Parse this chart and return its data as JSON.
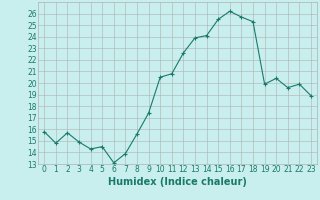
{
  "xlabel": "Humidex (Indice chaleur)",
  "x_values": [
    0,
    1,
    2,
    3,
    4,
    5,
    6,
    7,
    8,
    9,
    10,
    11,
    12,
    13,
    14,
    15,
    16,
    17,
    18,
    19,
    20,
    21,
    22,
    23
  ],
  "y_values": [
    15.8,
    14.8,
    15.7,
    14.9,
    14.3,
    14.5,
    13.1,
    13.9,
    15.6,
    17.4,
    20.5,
    20.8,
    22.6,
    23.9,
    24.1,
    25.5,
    26.2,
    25.7,
    25.3,
    19.9,
    20.4,
    19.6,
    19.9,
    18.9
  ],
  "line_color": "#1a7a6a",
  "marker": "+",
  "marker_size": 3,
  "bg_color": "#c8eeee",
  "grid_color": "#b0b0b0",
  "ylim": [
    13,
    27
  ],
  "yticks": [
    13,
    14,
    15,
    16,
    17,
    18,
    19,
    20,
    21,
    22,
    23,
    24,
    25,
    26
  ],
  "xticks": [
    0,
    1,
    2,
    3,
    4,
    5,
    6,
    7,
    8,
    9,
    10,
    11,
    12,
    13,
    14,
    15,
    16,
    17,
    18,
    19,
    20,
    21,
    22,
    23
  ],
  "tick_label_fontsize": 5.5,
  "xlabel_fontsize": 7,
  "axis_label_color": "#1a7a6a",
  "linewidth": 0.8,
  "markeredgewidth": 0.8
}
